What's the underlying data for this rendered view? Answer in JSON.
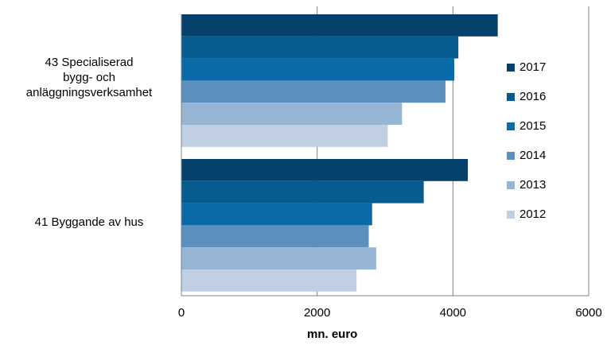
{
  "chart_data": {
    "type": "bar",
    "orientation": "horizontal",
    "categories": [
      "43 Specialiserad bygg- och anläggningsverksamhet",
      "41 Byggande av hus"
    ],
    "category_lines": [
      [
        "43 Specialiserad",
        "bygg- och",
        "anläggningsverksamhet"
      ],
      [
        "41 Byggande av hus"
      ]
    ],
    "series": [
      {
        "name": "2017",
        "color": "#06416b",
        "values": [
          4660,
          4220
        ]
      },
      {
        "name": "2016",
        "color": "#085b8f",
        "values": [
          4080,
          3570
        ]
      },
      {
        "name": "2015",
        "color": "#0b6aa8",
        "values": [
          4020,
          2810
        ]
      },
      {
        "name": "2014",
        "color": "#5b8fbe",
        "values": [
          3890,
          2760
        ]
      },
      {
        "name": "2013",
        "color": "#96b4d4",
        "values": [
          3250,
          2870
        ]
      },
      {
        "name": "2012",
        "color": "#c1cfe2",
        "values": [
          3040,
          2580
        ]
      }
    ],
    "xlabel": "mn. euro",
    "xlim": [
      0,
      6000
    ],
    "xticks": [
      "0",
      "2000",
      "4000",
      "6000"
    ],
    "grid": "vertical",
    "legend_position": "right"
  }
}
